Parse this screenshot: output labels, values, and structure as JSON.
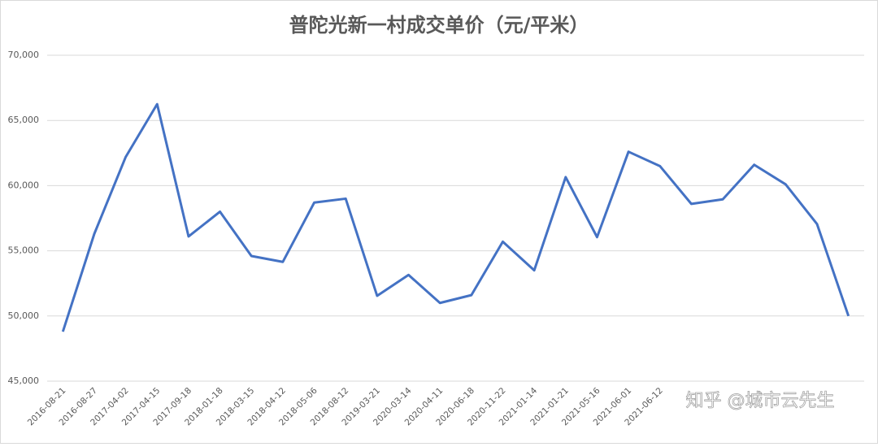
{
  "chart_data": {
    "type": "line",
    "title": "普陀光新一村成交单价（元/平米）",
    "categories": [
      "2016-08-21",
      "2016-08-27",
      "2017-04-02",
      "2017-04-15",
      "2017-09-18",
      "2018-01-18",
      "2018-03-15",
      "2018-04-12",
      "2018-05-06",
      "2018-08-12",
      "2019-03-21",
      "2020-03-14",
      "2020-04-11",
      "2020-06-18",
      "2020-11-22",
      "2021-01-14",
      "2021-01-21",
      "2021-05-16",
      "2021-06-01",
      "2021-06-12",
      null,
      null,
      null,
      null,
      null,
      null
    ],
    "series": [
      {
        "color": "#4472c4",
        "values": [
          48800,
          56300,
          62200,
          66250,
          56100,
          58000,
          54600,
          54150,
          58700,
          59000,
          51550,
          53150,
          51000,
          51600,
          55700,
          53500,
          60650,
          56050,
          62600,
          61500,
          58600,
          58950,
          61600,
          60100,
          57050,
          50000
        ]
      }
    ],
    "ylim": [
      45000,
      70000
    ],
    "yticks": [
      {
        "value": 45000,
        "label": "45,000"
      },
      {
        "value": 50000,
        "label": "50,000"
      },
      {
        "value": 55000,
        "label": "55,000"
      },
      {
        "value": 60000,
        "label": "60,000"
      },
      {
        "value": 65000,
        "label": "65,000"
      },
      {
        "value": 70000,
        "label": "70,000"
      }
    ],
    "grid": true,
    "watermark": "知乎 @城市云先生"
  }
}
